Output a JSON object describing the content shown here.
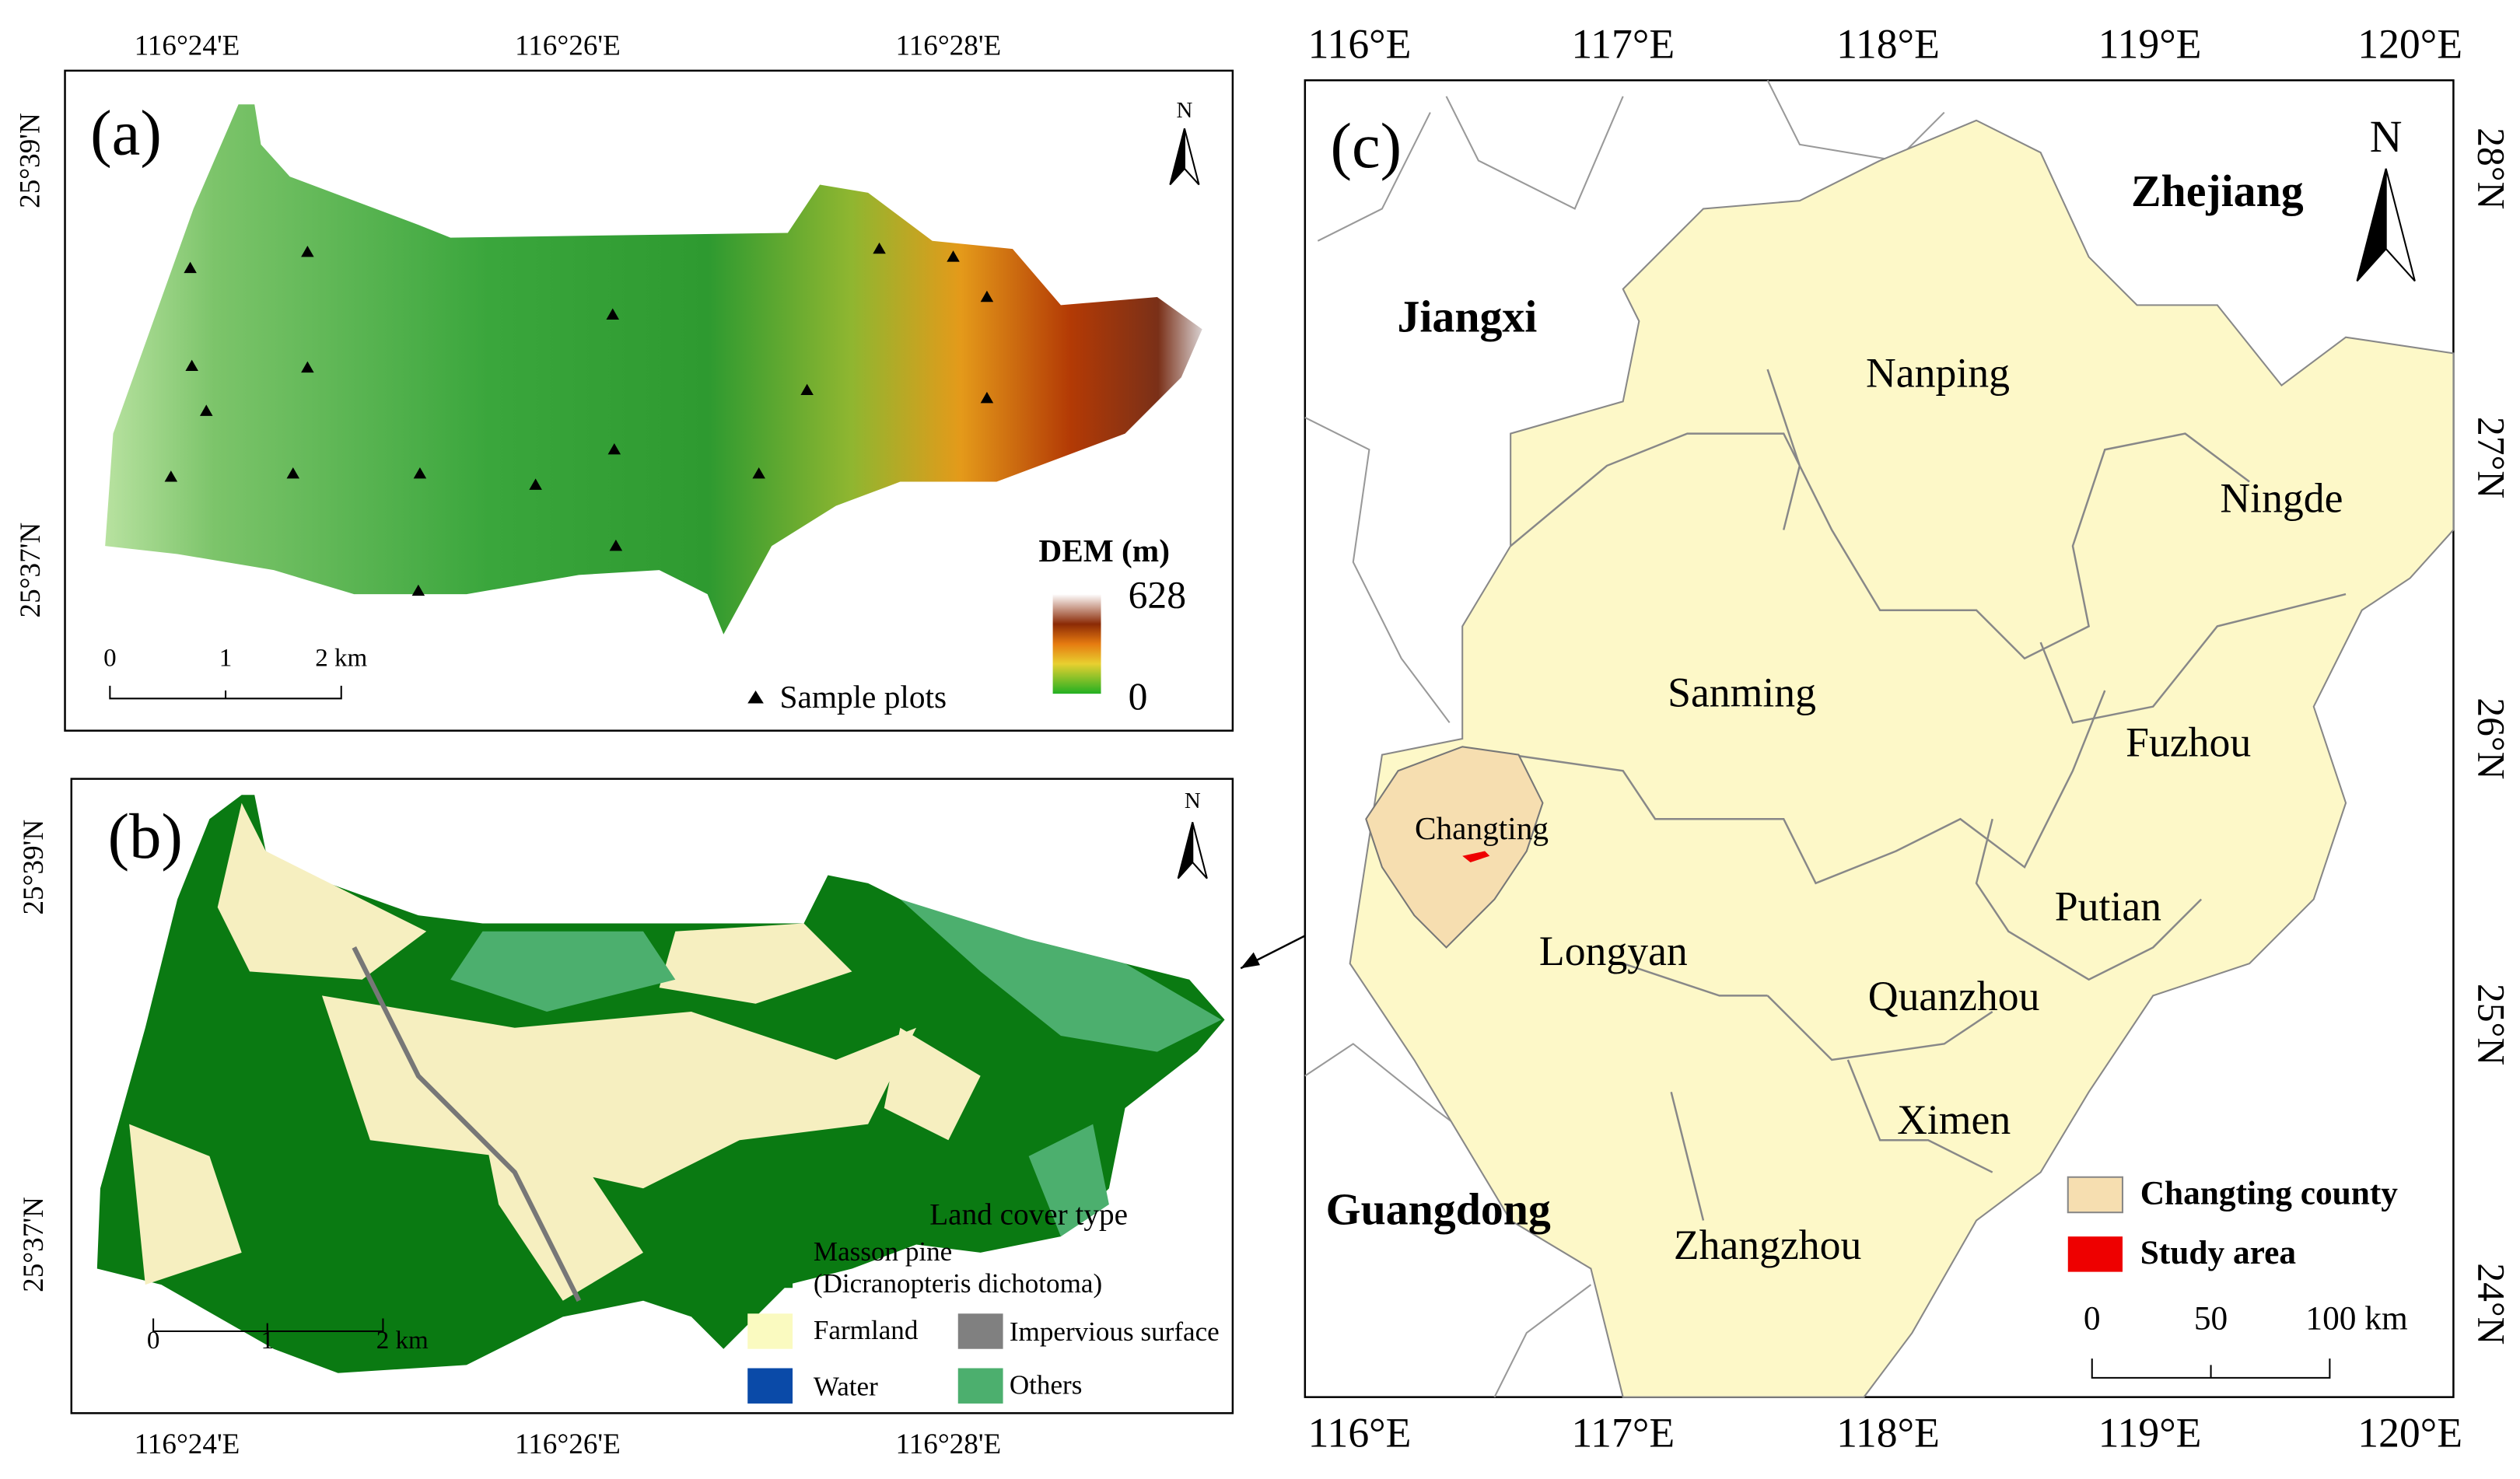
{
  "panel_a": {
    "label": "(a)",
    "x_ticks": [
      "116°24'E",
      "116°26'E",
      "116°28'E"
    ],
    "y_ticks": [
      "25°39'N",
      "25°37'N"
    ],
    "north": "N",
    "legend_title": "DEM (m)",
    "legend_max": "628",
    "legend_min": "0",
    "scale": [
      "0",
      "1",
      "2 km"
    ],
    "sample_plots": "Sample plots"
  },
  "panel_b": {
    "label": "(b)",
    "x_ticks": [
      "116°24'E",
      "116°26'E",
      "116°28'E"
    ],
    "y_ticks": [
      "25°39'N",
      "25°37'N"
    ],
    "north": "N",
    "scale": [
      "0",
      "1",
      "2 km"
    ],
    "legend_title": "Land cover type",
    "legend": {
      "masson_pine": [
        "Masson pine",
        "(Dicranopteris dichotoma)"
      ],
      "farmland": "Farmland",
      "impervious": "Impervious surface",
      "water": "Water",
      "others": "Others"
    }
  },
  "panel_c": {
    "label": "(c)",
    "x_ticks_top": [
      "116°E",
      "117°E",
      "118°E",
      "119°E",
      "120°E"
    ],
    "x_ticks_bottom": [
      "116°E",
      "117°E",
      "118°E",
      "119°E",
      "120°E"
    ],
    "y_ticks": [
      "28°N",
      "27°N",
      "26°N",
      "25°N",
      "24°N"
    ],
    "north": "N",
    "provinces": [
      "Zhejiang",
      "Jiangxi",
      "Guangdong"
    ],
    "cities": [
      "Nanping",
      "Ningde",
      "Sanming",
      "Fuzhou",
      "Longyan",
      "Putian",
      "Quanzhou",
      "Ximen",
      "Zhangzhou"
    ],
    "county": "Changting",
    "legend": [
      "Changting county",
      "Study area"
    ],
    "scale": [
      "0",
      "50",
      "100 km"
    ]
  }
}
